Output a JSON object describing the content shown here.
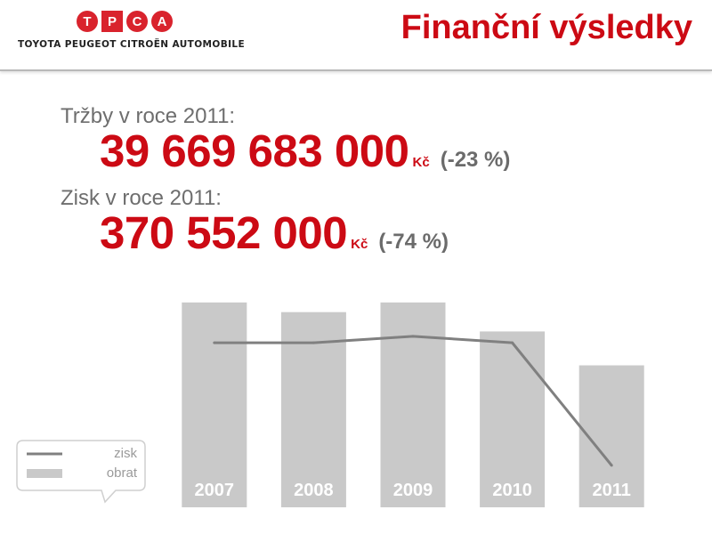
{
  "header": {
    "logo_letters": [
      "T",
      "P",
      "C",
      "A"
    ],
    "logo_subtitle": "TOYOTA PEUGEOT CITROËN AUTOMOBILE",
    "title": "Finanční výsledky"
  },
  "stats": {
    "revenue": {
      "label": "Tržby v roce 2011:",
      "value": "39 669 683 000",
      "currency": "Kč",
      "change": "(-23 %)"
    },
    "profit": {
      "label": "Zisk v roce 2011:",
      "value": "370 552 000",
      "currency": "Kč",
      "change": "(-74 %)"
    }
  },
  "colors": {
    "accent_red": "#cc0a14",
    "logo_blue": "#1f4f9c",
    "bar_gray": "#c9c9c9",
    "line_gray": "#808080",
    "text_gray": "#6e6e6e"
  },
  "chart_data": {
    "type": "bar",
    "categories": [
      "2007",
      "2008",
      "2009",
      "2010",
      "2011"
    ],
    "series": [
      {
        "name": "obrat",
        "type": "bar",
        "values": [
          63.5,
          60.5,
          63.5,
          54.5,
          44.0
        ]
      },
      {
        "name": "zisk",
        "type": "line",
        "values": [
          51.0,
          51.0,
          53.0,
          51.0,
          13.0
        ]
      }
    ],
    "ylim": [
      0,
      80
    ],
    "grid": false,
    "legend": "bottom-left",
    "legend_entries": [
      "zisk",
      "obrat"
    ],
    "title": "",
    "xlabel": "",
    "ylabel": ""
  }
}
